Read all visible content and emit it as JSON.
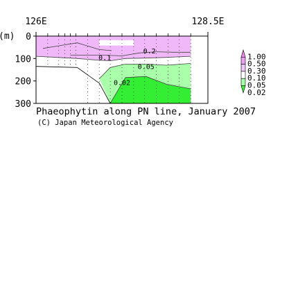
{
  "chart_data": {
    "type": "heatmap",
    "title": "Phaeophytin along PN line, January 2007",
    "credit": "(C) Japan Meteorological Agency",
    "xlabel": "",
    "ylabel": "(m)",
    "x_tick_labels": [
      {
        "value": 126.0,
        "label": "126E"
      },
      {
        "value": 128.5,
        "label": "128.5E"
      }
    ],
    "xlim": [
      126.0,
      128.5
    ],
    "y_ticks": [
      0,
      100,
      200,
      300
    ],
    "ylim": [
      0,
      300
    ],
    "y_inverted": true,
    "station_longitudes": [
      126.0,
      126.17,
      126.33,
      126.42,
      126.5,
      126.58,
      126.75,
      126.92,
      127.08,
      127.25,
      127.42,
      127.58,
      127.75,
      127.92,
      128.08,
      128.25
    ],
    "legend": {
      "labels": [
        "1.00",
        "0.50",
        "0.30",
        "0.10",
        "0.05",
        "0.02"
      ],
      "colors": [
        "#ee88ee",
        "#e8a0f0",
        "#f0c8f8",
        "#ffffff",
        "#aaffaa",
        "#44ee44"
      ]
    },
    "fill_levels": [
      {
        "range": "0.10-0.30",
        "color": "#f0b8f8"
      },
      {
        "range": "0.05-0.10",
        "color": "#ffffff"
      },
      {
        "range": "0.02-0.05",
        "color": "#aaffaa"
      },
      {
        "range": "<0.02",
        "color": "#33ee33"
      }
    ],
    "contour_labels": [
      {
        "label": "0.2",
        "lon": 127.65,
        "depth": 65
      },
      {
        "label": "0.1",
        "lon": 127.0,
        "depth": 95
      },
      {
        "label": "0.05",
        "lon": 127.6,
        "depth": 135
      },
      {
        "label": "0.02",
        "lon": 127.25,
        "depth": 205
      }
    ],
    "contours": [
      {
        "level": 0.2,
        "lon": [
          126.5,
          126.75,
          127.0,
          127.25,
          127.5,
          127.75,
          128.0,
          128.25
        ],
        "depth": [
          85,
          85,
          85,
          88,
          75,
          70,
          72,
          72
        ]
      },
      {
        "level": 0.1,
        "lon": [
          126.0,
          126.3,
          126.6,
          126.92,
          127.08,
          127.3,
          127.6,
          127.9,
          128.25
        ],
        "depth": [
          90,
          95,
          100,
          108,
          110,
          100,
          98,
          95,
          90
        ]
      },
      {
        "level": 0.05,
        "lon": [
          126.92,
          127.08,
          127.3,
          127.6,
          127.9,
          128.25
        ],
        "depth": [
          190,
          140,
          125,
          125,
          130,
          122
        ]
      },
      {
        "level": 0.02,
        "lon": [
          127.08,
          127.3,
          127.6,
          127.9,
          128.25
        ],
        "depth": [
          300,
          185,
          180,
          215,
          235
        ]
      }
    ]
  }
}
